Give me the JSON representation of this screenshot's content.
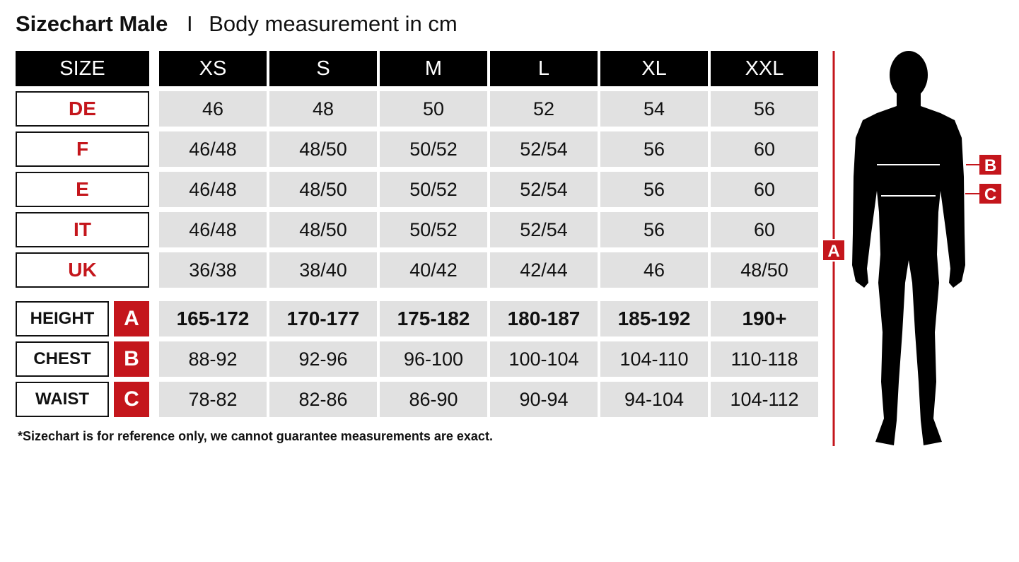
{
  "title": {
    "main": "Sizechart Male",
    "separator": "I",
    "subtitle": "Body measurement in cm"
  },
  "header": {
    "label": "SIZE",
    "sizes": [
      "XS",
      "S",
      "M",
      "L",
      "XL",
      "XXL"
    ]
  },
  "conversion_rows": [
    {
      "label": "DE",
      "values": [
        "46",
        "48",
        "50",
        "52",
        "54",
        "56"
      ]
    },
    {
      "label": "F",
      "values": [
        "46/48",
        "48/50",
        "50/52",
        "52/54",
        "56",
        "60"
      ]
    },
    {
      "label": "E",
      "values": [
        "46/48",
        "48/50",
        "50/52",
        "52/54",
        "56",
        "60"
      ]
    },
    {
      "label": "IT",
      "values": [
        "46/48",
        "48/50",
        "50/52",
        "52/54",
        "56",
        "60"
      ]
    },
    {
      "label": "UK",
      "values": [
        "36/38",
        "38/40",
        "40/42",
        "42/44",
        "46",
        "48/50"
      ]
    }
  ],
  "measurement_rows": [
    {
      "label": "HEIGHT",
      "letter": "A",
      "bold": true,
      "values": [
        "165-172",
        "170-177",
        "175-182",
        "180-187",
        "185-192",
        "190+"
      ]
    },
    {
      "label": "CHEST",
      "letter": "B",
      "bold": false,
      "values": [
        "88-92",
        "92-96",
        "96-100",
        "100-104",
        "104-110",
        "110-118"
      ]
    },
    {
      "label": "WAIST",
      "letter": "C",
      "bold": false,
      "values": [
        "78-82",
        "82-86",
        "86-90",
        "90-94",
        "94-104",
        "104-112"
      ]
    }
  ],
  "footnote": "*Sizechart is for reference only, we cannot guarantee measurements are exact.",
  "figure": {
    "markers": {
      "height": "A",
      "chest": "B",
      "waist": "C"
    }
  },
  "colors": {
    "accent": "#c4161c",
    "header_bg": "#000000",
    "cell_bg": "#e1e1e1"
  }
}
